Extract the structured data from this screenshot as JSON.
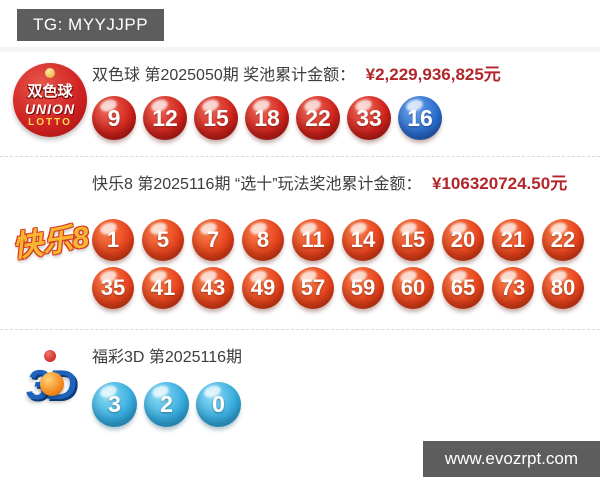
{
  "page": {
    "tg_badge": "TG: MYYJJPP",
    "website": "www.evozrpt.com"
  },
  "colors": {
    "badge_bg": "#5d5d5d",
    "amount_red": "#b2262b",
    "ball_red": "#d0231c",
    "ball_blue": "#2a6fd2",
    "ball_orange": "#e8431c",
    "ball_cyan": "#35aadd"
  },
  "sections": [
    {
      "name": "双色球",
      "logo": {
        "line1": "双色球",
        "line2": "UNION",
        "line3": "LOTTO"
      },
      "title": "双色球 第2025050期 奖池累计金额：",
      "amount": "¥2,229,936,825元",
      "balls": [
        {
          "value": "9",
          "color": "red"
        },
        {
          "value": "12",
          "color": "red"
        },
        {
          "value": "15",
          "color": "red"
        },
        {
          "value": "18",
          "color": "red"
        },
        {
          "value": "22",
          "color": "red"
        },
        {
          "value": "33",
          "color": "red"
        },
        {
          "value": "16",
          "color": "blue"
        }
      ]
    },
    {
      "name": "快乐8",
      "logo_text": "快乐8",
      "title": "快乐8 第2025116期 “选十”玩法奖池累计金额：",
      "amount": "¥106320724.50元",
      "balls_row1": [
        {
          "value": "1",
          "color": "orange"
        },
        {
          "value": "5",
          "color": "orange"
        },
        {
          "value": "7",
          "color": "orange"
        },
        {
          "value": "8",
          "color": "orange"
        },
        {
          "value": "11",
          "color": "orange"
        },
        {
          "value": "14",
          "color": "orange"
        },
        {
          "value": "15",
          "color": "orange"
        },
        {
          "value": "20",
          "color": "orange"
        },
        {
          "value": "21",
          "color": "orange"
        },
        {
          "value": "22",
          "color": "orange"
        }
      ],
      "balls_row2": [
        {
          "value": "35",
          "color": "orange"
        },
        {
          "value": "41",
          "color": "orange"
        },
        {
          "value": "43",
          "color": "orange"
        },
        {
          "value": "49",
          "color": "orange"
        },
        {
          "value": "57",
          "color": "orange"
        },
        {
          "value": "59",
          "color": "orange"
        },
        {
          "value": "60",
          "color": "orange"
        },
        {
          "value": "65",
          "color": "orange"
        },
        {
          "value": "73",
          "color": "orange"
        },
        {
          "value": "80",
          "color": "orange"
        }
      ]
    },
    {
      "name": "福彩3D",
      "logo_text": "3D",
      "title": "福彩3D 第2025116期",
      "amount": "",
      "balls": [
        {
          "value": "3",
          "color": "cyan"
        },
        {
          "value": "2",
          "color": "cyan"
        },
        {
          "value": "0",
          "color": "cyan"
        }
      ]
    }
  ]
}
